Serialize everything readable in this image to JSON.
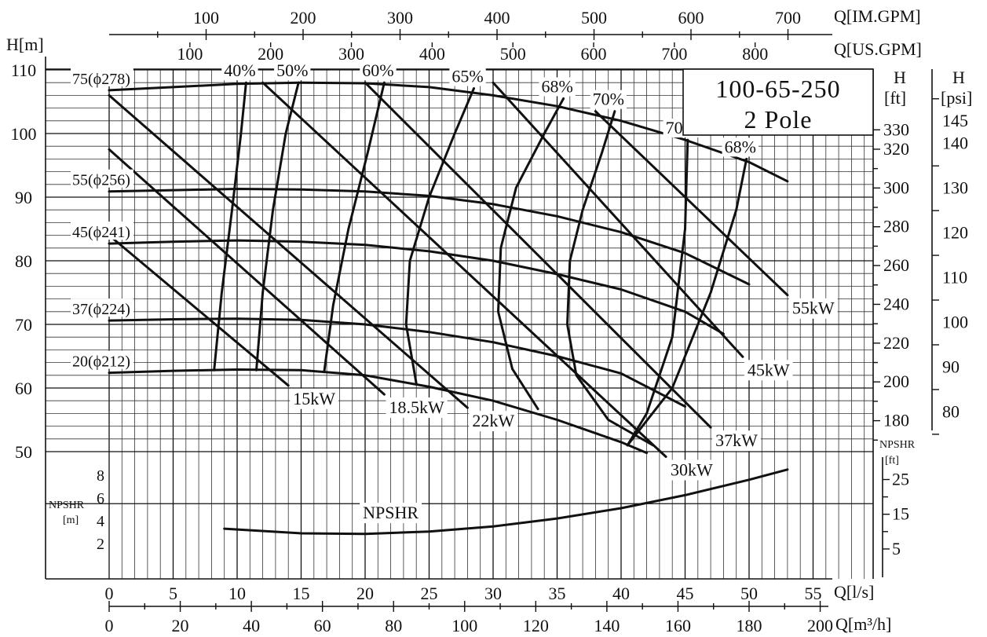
{
  "chart_data": {
    "type": "line",
    "title": "100-65-250",
    "subtitle": "2 Pole",
    "axes": {
      "left_label": "H[m]",
      "left_ticks": [
        "50",
        "60",
        "70",
        "80",
        "90",
        "100",
        "110"
      ],
      "npshr_left_label_1": "NPSHR",
      "npshr_left_label_2": "[m]",
      "npshr_left_ticks": [
        "2",
        "4",
        "6",
        "8"
      ],
      "right_ft_label_1": "H",
      "right_ft_label_2": "[ft]",
      "right_ft_ticks": [
        "180",
        "200",
        "220",
        "240",
        "260",
        "280",
        "300",
        "320",
        "330"
      ],
      "right_psi_label_1": "H",
      "right_psi_label_2": "[psi]",
      "right_psi_ticks": [
        "80",
        "90",
        "100",
        "110",
        "120",
        "130",
        "140",
        "145"
      ],
      "npshr_right_label_1": "NPSHR",
      "npshr_right_label_2": "[ft]",
      "npshr_right_ticks": [
        "5",
        "15",
        "25"
      ],
      "x_ls_label": "Q[l/s]",
      "x_ls_ticks": [
        "0",
        "5",
        "10",
        "15",
        "20",
        "25",
        "30",
        "35",
        "40",
        "45",
        "50",
        "55"
      ],
      "x_m3h_label": "Q[m³/h]",
      "x_m3h_ticks": [
        "0",
        "20",
        "40",
        "60",
        "80",
        "100",
        "120",
        "140",
        "160",
        "180",
        "200"
      ],
      "top_im_label": "Q[IM.GPM]",
      "top_im_ticks": [
        "100",
        "200",
        "300",
        "400",
        "500",
        "600",
        "700"
      ],
      "top_us_label": "Q[US.GPM]",
      "top_us_ticks": [
        "100",
        "200",
        "300",
        "400",
        "500",
        "600",
        "700",
        "800"
      ],
      "xlim_ls": [
        0,
        57
      ],
      "ylim_head_m": [
        50,
        110
      ]
    },
    "head_curves": [
      {
        "label": "75(ϕ278)",
        "x": [
          0,
          5,
          10,
          15,
          20,
          25,
          30,
          35,
          40,
          45,
          50,
          53
        ],
        "y": [
          106.8,
          107.3,
          107.8,
          108.0,
          107.9,
          107.3,
          106.0,
          104.3,
          102.0,
          99.0,
          95.5,
          92.5
        ]
      },
      {
        "label": "55(ϕ256)",
        "x": [
          0,
          5,
          10,
          15,
          20,
          25,
          30,
          35,
          40,
          45,
          50
        ],
        "y": [
          90.9,
          91.1,
          91.3,
          91.2,
          90.9,
          90.2,
          88.9,
          87.0,
          84.5,
          81.2,
          76.3
        ]
      },
      {
        "label": "45(ϕ241)",
        "x": [
          0,
          5,
          10,
          15,
          20,
          25,
          30,
          35,
          40,
          45,
          48
        ],
        "y": [
          82.7,
          83.0,
          83.2,
          83.0,
          82.5,
          81.5,
          80.0,
          77.9,
          75.5,
          72.0,
          68.5
        ]
      },
      {
        "label": "37(ϕ224)",
        "x": [
          0,
          5,
          10,
          15,
          20,
          25,
          30,
          35,
          40,
          45
        ],
        "y": [
          70.6,
          70.8,
          70.9,
          70.7,
          70.0,
          68.8,
          67.2,
          65.0,
          62.3,
          57.1
        ]
      },
      {
        "label": "20(ϕ212)",
        "x": [
          0,
          5,
          10,
          15,
          20,
          25,
          30,
          35,
          40,
          42
        ],
        "y": [
          62.4,
          62.7,
          62.9,
          62.8,
          62.0,
          60.2,
          58.0,
          55.0,
          51.5,
          49.8
        ]
      }
    ],
    "power_lines": [
      {
        "label": "15kW",
        "x": [
          0,
          14
        ],
        "y": [
          84.0,
          60.4
        ]
      },
      {
        "label": "18.5kW",
        "x": [
          0,
          21.5
        ],
        "y": [
          97.5,
          59.0
        ]
      },
      {
        "label": "22kW",
        "x": [
          0,
          28
        ],
        "y": [
          106.0,
          56.9
        ]
      },
      {
        "label": "30kW",
        "x": [
          12,
          43.5
        ],
        "y": [
          108.0,
          49.2
        ]
      },
      {
        "label": "37kW",
        "x": [
          20,
          47
        ],
        "y": [
          108.0,
          53.8
        ]
      },
      {
        "label": "45kW",
        "x": [
          30,
          49.5
        ],
        "y": [
          108.0,
          64.9
        ]
      },
      {
        "label": "55kW",
        "x": [
          38,
          53
        ],
        "y": [
          103.5,
          74.6
        ]
      }
    ],
    "efficiency_curves": [
      {
        "label": "40%",
        "x": [
          8.2,
          8.8,
          9.6,
          10.3,
          10.7
        ],
        "y": [
          62.8,
          75.0,
          88.0,
          100.0,
          108.0
        ]
      },
      {
        "label": "50%",
        "x": [
          11.5,
          12.0,
          12.8,
          13.8,
          14.8
        ],
        "y": [
          62.8,
          75.0,
          88.0,
          100.0,
          108.0
        ]
      },
      {
        "label": "60%",
        "x": [
          16.8,
          17.5,
          18.7,
          20.2,
          21.5
        ],
        "y": [
          62.5,
          73.0,
          85.0,
          97.0,
          108.0
        ]
      },
      {
        "label": "65%",
        "x": [
          24.0,
          23.2,
          23.5,
          25.0,
          27.0,
          28.5
        ],
        "y": [
          60.7,
          70.0,
          80.0,
          90.0,
          100.0,
          107.1
        ]
      },
      {
        "label": "68%",
        "x": [
          33.5,
          31.5,
          30.4,
          30.6,
          31.8,
          34.0,
          35.5
        ],
        "y": [
          56.7,
          63.0,
          72.0,
          82.0,
          91.5,
          100.0,
          105.5
        ]
      },
      {
        "label": "70%",
        "x": [
          42.5,
          39.0,
          36.5,
          35.8,
          36.0,
          37.0,
          38.5,
          39.5
        ],
        "y": [
          51.0,
          55.0,
          62.0,
          70.0,
          80.0,
          88.0,
          97.0,
          103.5
        ]
      },
      {
        "label": "70%",
        "x": [
          40.5,
          42.0,
          44.0,
          45.0,
          45.2
        ],
        "y": [
          51.0,
          56.0,
          68.0,
          85.0,
          99.0
        ]
      },
      {
        "label": "68%",
        "x": [
          40.5,
          44.0,
          47.0,
          49.0,
          49.8
        ],
        "y": [
          51.0,
          60.0,
          75.0,
          88.0,
          96.0
        ]
      }
    ],
    "npshr_curve": {
      "label": "NPSHR",
      "x_unit": "l/s",
      "y_unit": "m",
      "x": [
        9,
        15,
        20,
        25,
        30,
        35,
        40,
        45,
        50,
        53
      ],
      "y": [
        3.3,
        2.9,
        2.85,
        3.05,
        3.5,
        4.2,
        5.1,
        6.25,
        7.6,
        8.5
      ]
    }
  }
}
